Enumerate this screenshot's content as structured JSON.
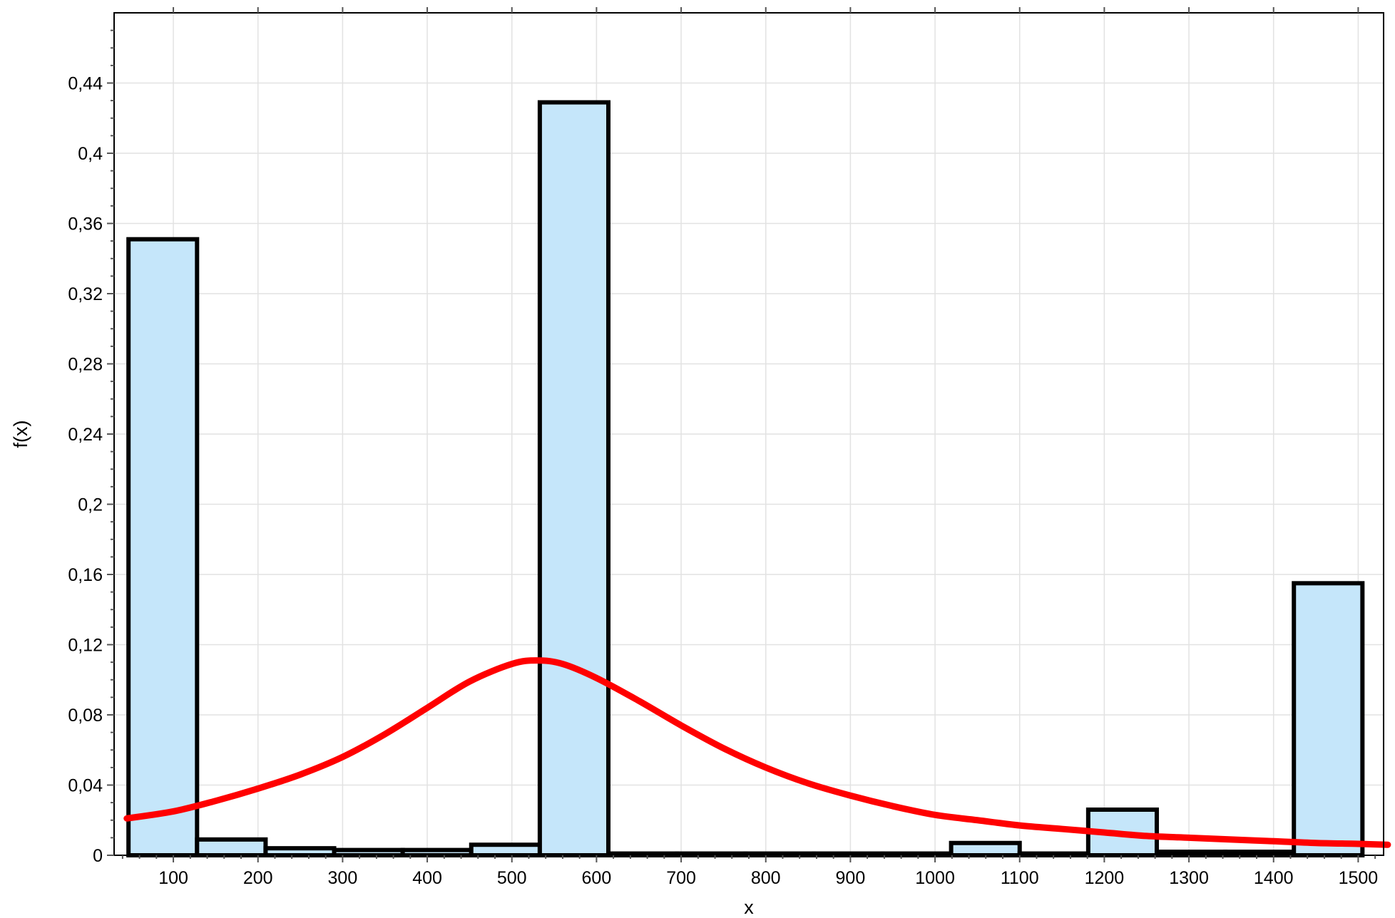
{
  "chart_data": {
    "type": "bar",
    "subtype": "histogram-with-density-curve",
    "xlabel": "x",
    "ylabel": "f(x)",
    "xlim": [
      30,
      1530
    ],
    "ylim": [
      0,
      0.48
    ],
    "x_ticks": [
      100,
      200,
      300,
      400,
      500,
      600,
      700,
      800,
      900,
      1000,
      1100,
      1200,
      1300,
      1400,
      1500
    ],
    "x_tick_labels": [
      "100",
      "200",
      "300",
      "400",
      "500",
      "600",
      "700",
      "800",
      "900",
      "1000",
      "1100",
      "1200",
      "1300",
      "1400",
      "1500"
    ],
    "y_ticks": [
      0,
      0.04,
      0.08,
      0.12,
      0.16,
      0.2,
      0.24,
      0.28,
      0.32,
      0.36,
      0.4,
      0.44
    ],
    "y_tick_labels": [
      "0",
      "0,04",
      "0,08",
      "0,12",
      "0,16",
      "0,2",
      "0,24",
      "0,28",
      "0,32",
      "0,36",
      "0,4",
      "0,44"
    ],
    "grid": true,
    "bins": [
      {
        "x0": 47,
        "x1": 128,
        "value": 0.351
      },
      {
        "x0": 128,
        "x1": 209,
        "value": 0.009
      },
      {
        "x0": 209,
        "x1": 290,
        "value": 0.004
      },
      {
        "x0": 290,
        "x1": 371,
        "value": 0.003
      },
      {
        "x0": 371,
        "x1": 452,
        "value": 0.003
      },
      {
        "x0": 452,
        "x1": 533,
        "value": 0.006
      },
      {
        "x0": 533,
        "x1": 614,
        "value": 0.429
      },
      {
        "x0": 614,
        "x1": 695,
        "value": 0.001
      },
      {
        "x0": 695,
        "x1": 776,
        "value": 0.001
      },
      {
        "x0": 776,
        "x1": 857,
        "value": 0.001
      },
      {
        "x0": 857,
        "x1": 938,
        "value": 0.001
      },
      {
        "x0": 938,
        "x1": 1019,
        "value": 0.001
      },
      {
        "x0": 1019,
        "x1": 1100,
        "value": 0.007
      },
      {
        "x0": 1100,
        "x1": 1181,
        "value": 0.001
      },
      {
        "x0": 1181,
        "x1": 1262,
        "value": 0.026
      },
      {
        "x0": 1262,
        "x1": 1343,
        "value": 0.002
      },
      {
        "x0": 1343,
        "x1": 1424,
        "value": 0.002
      },
      {
        "x0": 1424,
        "x1": 1505,
        "value": 0.155
      }
    ],
    "density_curve": {
      "x": [
        45,
        100,
        150,
        200,
        250,
        300,
        350,
        400,
        450,
        500,
        530,
        560,
        600,
        650,
        700,
        750,
        800,
        850,
        900,
        950,
        1000,
        1050,
        1100,
        1150,
        1200,
        1250,
        1300,
        1350,
        1400,
        1450,
        1500,
        1535
      ],
      "y": [
        0.021,
        0.025,
        0.031,
        0.038,
        0.046,
        0.056,
        0.069,
        0.084,
        0.099,
        0.109,
        0.111,
        0.109,
        0.101,
        0.088,
        0.074,
        0.061,
        0.05,
        0.041,
        0.034,
        0.028,
        0.023,
        0.02,
        0.017,
        0.015,
        0.013,
        0.011,
        0.01,
        0.009,
        0.008,
        0.007,
        0.0065,
        0.006
      ]
    },
    "colors": {
      "bar_fill": "#c5e6fa",
      "bar_stroke": "#000000",
      "curve": "#ff0000",
      "grid": "#e2e2e2",
      "axis": "#000000"
    }
  }
}
